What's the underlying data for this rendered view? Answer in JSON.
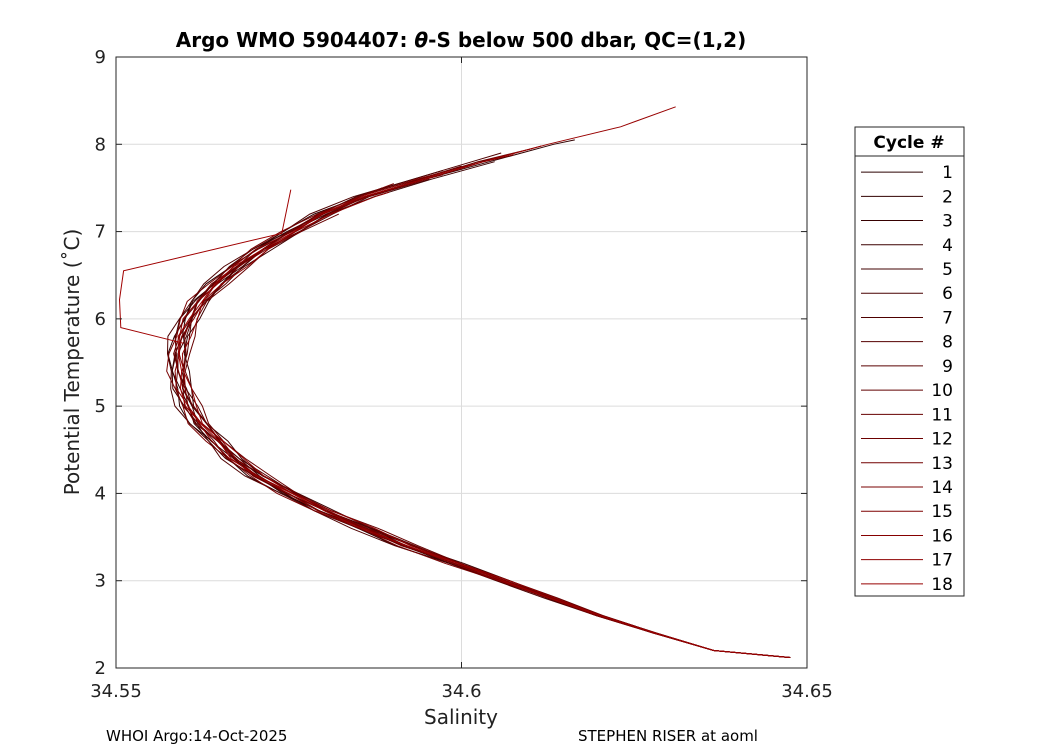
{
  "chart_data": {
    "type": "line",
    "title_prefix": "Argo WMO 5904407: ",
    "title_theta": "θ",
    "title_suffix": "-S below 500 dbar,  QC=(1,2)",
    "xlabel": "Salinity",
    "ylabel": "Potential Temperature (˚C)",
    "xlim": [
      34.55,
      34.65
    ],
    "ylim": [
      2,
      9
    ],
    "xticks": [
      34.55,
      34.6,
      34.65
    ],
    "xtick_labels": [
      "34.55",
      "34.6",
      "34.65"
    ],
    "yticks": [
      2,
      3,
      4,
      5,
      6,
      7,
      8,
      9
    ],
    "ytick_labels": [
      "2",
      "3",
      "4",
      "5",
      "6",
      "7",
      "8",
      "9"
    ],
    "grid": true,
    "legend": {
      "title": "Cycle #",
      "placement": "outside-right"
    },
    "base_profile": {
      "theta": [
        8.43,
        8.2,
        8.0,
        7.8,
        7.6,
        7.4,
        7.2,
        7.0,
        6.8,
        6.6,
        6.4,
        6.2,
        6.0,
        5.8,
        5.6,
        5.4,
        5.2,
        5.0,
        4.8,
        4.6,
        4.4,
        4.2,
        4.0,
        3.8,
        3.6,
        3.4,
        3.2,
        3.0,
        2.8,
        2.6,
        2.4,
        2.2,
        2.12
      ],
      "salinity": [
        34.631,
        34.623,
        34.613,
        34.603,
        34.594,
        34.586,
        34.58,
        34.5755,
        34.571,
        34.5675,
        34.5645,
        34.562,
        34.5605,
        34.5595,
        34.559,
        34.559,
        34.5595,
        34.5605,
        34.562,
        34.5645,
        34.567,
        34.5705,
        34.575,
        34.58,
        34.586,
        34.592,
        34.599,
        34.606,
        34.613,
        34.62,
        34.628,
        34.6365,
        34.6475
      ]
    },
    "series": [
      {
        "name": "1",
        "color": "#2a0000",
        "top_theta": 7.5,
        "offset": -0.001
      },
      {
        "name": "2",
        "color": "#300000",
        "top_theta": 8.05,
        "offset": 0.0006
      },
      {
        "name": "3",
        "color": "#360000",
        "top_theta": 7.4,
        "offset": -0.0004
      },
      {
        "name": "4",
        "color": "#3c0000",
        "top_theta": 7.8,
        "offset": 0.0012
      },
      {
        "name": "5",
        "color": "#420000",
        "top_theta": 7.7,
        "offset": -0.0008
      },
      {
        "name": "6",
        "color": "#480000",
        "top_theta": 7.3,
        "offset": 0.0003
      },
      {
        "name": "7",
        "color": "#4e0000",
        "top_theta": 7.9,
        "offset": -0.0015
      },
      {
        "name": "8",
        "color": "#540000",
        "top_theta": 7.6,
        "offset": 0.0009
      },
      {
        "name": "9",
        "color": "#5a0000",
        "top_theta": 7.85,
        "offset": 0.0
      },
      {
        "name": "10",
        "color": "#600000",
        "top_theta": 7.75,
        "offset": -0.0005
      },
      {
        "name": "11",
        "color": "#660000",
        "top_theta": 7.2,
        "offset": 0.0015
      },
      {
        "name": "12",
        "color": "#6c0000",
        "top_theta": 7.95,
        "offset": -0.0002
      },
      {
        "name": "13",
        "color": "#720000",
        "top_theta": 7.65,
        "offset": 0.0007
      },
      {
        "name": "14",
        "color": "#780000",
        "top_theta": 7.55,
        "offset": -0.0012
      },
      {
        "name": "15",
        "color": "#7e0000",
        "top_theta": 7.88,
        "offset": 0.0004
      },
      {
        "name": "16",
        "color": "#860000",
        "top_theta": 7.98,
        "offset": -0.0003
      },
      {
        "name": "17",
        "color": "#8e0000",
        "top_theta": 7.45,
        "offset": 0.001
      },
      {
        "name": "18",
        "color": "#980000",
        "top_theta": 8.43,
        "offset": 0.0
      }
    ],
    "anomaly_line": {
      "theta": [
        7.48,
        6.98,
        6.55,
        6.22,
        5.9,
        5.72
      ],
      "salinity": [
        34.5753,
        34.574,
        34.5511,
        34.5505,
        34.5507,
        34.5598
      ]
    }
  },
  "footer": {
    "left": "WHOI Argo:14-Oct-2025",
    "right": "STEPHEN RISER at aoml"
  }
}
